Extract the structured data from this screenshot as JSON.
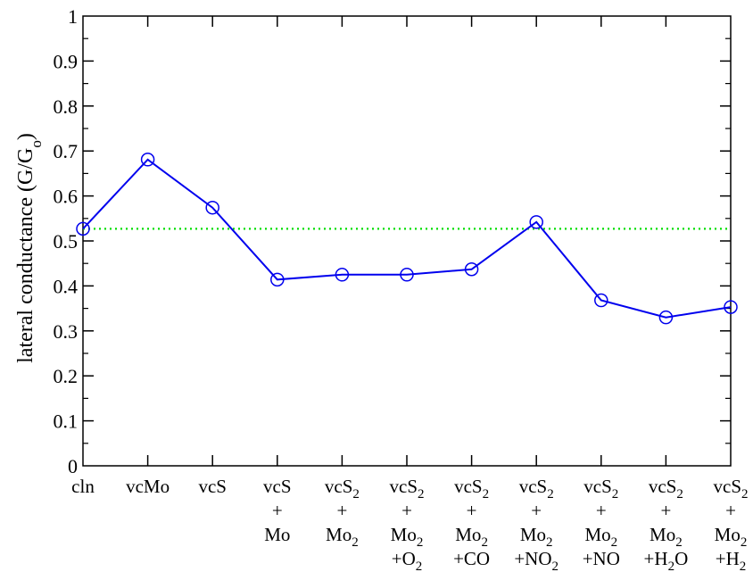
{
  "chart_data": {
    "type": "line",
    "title": "",
    "xlabel": "",
    "ylabel": "lateral conductance (G/G",
    "ylabel_sub": "o",
    "ylabel_close": ")",
    "ylim": [
      0,
      1
    ],
    "yticks": [
      {
        "v": 0,
        "label": "0"
      },
      {
        "v": 0.1,
        "label": "0.1"
      },
      {
        "v": 0.2,
        "label": "0.2"
      },
      {
        "v": 0.3,
        "label": "0.3"
      },
      {
        "v": 0.4,
        "label": "0.4"
      },
      {
        "v": 0.5,
        "label": "0.5"
      },
      {
        "v": 0.6,
        "label": "0.6"
      },
      {
        "v": 0.7,
        "label": "0.7"
      },
      {
        "v": 0.8,
        "label": "0.8"
      },
      {
        "v": 0.9,
        "label": "0.9"
      },
      {
        "v": 1,
        "label": "1"
      }
    ],
    "grid": false,
    "categories": [
      {
        "lines": [
          [
            {
              "t": "cln"
            }
          ]
        ]
      },
      {
        "lines": [
          [
            {
              "t": "vcMo"
            }
          ]
        ]
      },
      {
        "lines": [
          [
            {
              "t": "vcS"
            }
          ]
        ]
      },
      {
        "lines": [
          [
            {
              "t": "vcS"
            }
          ],
          [
            {
              "t": "+"
            }
          ],
          [
            {
              "t": "Mo"
            }
          ]
        ]
      },
      {
        "lines": [
          [
            {
              "t": "vcS"
            },
            {
              "t": "2",
              "sub": true
            }
          ],
          [
            {
              "t": "+"
            }
          ],
          [
            {
              "t": "Mo"
            },
            {
              "t": "2",
              "sub": true
            }
          ]
        ]
      },
      {
        "lines": [
          [
            {
              "t": "vcS"
            },
            {
              "t": "2",
              "sub": true
            }
          ],
          [
            {
              "t": "+"
            }
          ],
          [
            {
              "t": "Mo"
            },
            {
              "t": "2",
              "sub": true
            }
          ],
          [
            {
              "t": "+O"
            },
            {
              "t": "2",
              "sub": true
            }
          ]
        ]
      },
      {
        "lines": [
          [
            {
              "t": "vcS"
            },
            {
              "t": "2",
              "sub": true
            }
          ],
          [
            {
              "t": "+"
            }
          ],
          [
            {
              "t": "Mo"
            },
            {
              "t": "2",
              "sub": true
            }
          ],
          [
            {
              "t": "+CO"
            }
          ]
        ]
      },
      {
        "lines": [
          [
            {
              "t": "vcS"
            },
            {
              "t": "2",
              "sub": true
            }
          ],
          [
            {
              "t": "+"
            }
          ],
          [
            {
              "t": "Mo"
            },
            {
              "t": "2",
              "sub": true
            }
          ],
          [
            {
              "t": "+NO"
            },
            {
              "t": "2",
              "sub": true
            }
          ]
        ]
      },
      {
        "lines": [
          [
            {
              "t": "vcS"
            },
            {
              "t": "2",
              "sub": true
            }
          ],
          [
            {
              "t": "+"
            }
          ],
          [
            {
              "t": "Mo"
            },
            {
              "t": "2",
              "sub": true
            }
          ],
          [
            {
              "t": "+NO"
            }
          ]
        ]
      },
      {
        "lines": [
          [
            {
              "t": "vcS"
            },
            {
              "t": "2",
              "sub": true
            }
          ],
          [
            {
              "t": "+"
            }
          ],
          [
            {
              "t": "Mo"
            },
            {
              "t": "2",
              "sub": true
            }
          ],
          [
            {
              "t": "+H"
            },
            {
              "t": "2",
              "sub": true
            },
            {
              "t": "O"
            }
          ]
        ]
      },
      {
        "lines": [
          [
            {
              "t": "vcS"
            },
            {
              "t": "2",
              "sub": true
            }
          ],
          [
            {
              "t": "+"
            }
          ],
          [
            {
              "t": "Mo"
            },
            {
              "t": "2",
              "sub": true
            }
          ],
          [
            {
              "t": "+H"
            },
            {
              "t": "2",
              "sub": true
            }
          ]
        ]
      }
    ],
    "series": [
      {
        "values": [
          0.527,
          0.681,
          0.574,
          0.414,
          0.425,
          0.425,
          0.437,
          0.542,
          0.368,
          0.33,
          0.353
        ],
        "color": "#0000ee",
        "marker": "circle-open"
      }
    ],
    "reference_line": {
      "y": 0.527,
      "color": "#00dd00",
      "style": "dotted"
    }
  }
}
